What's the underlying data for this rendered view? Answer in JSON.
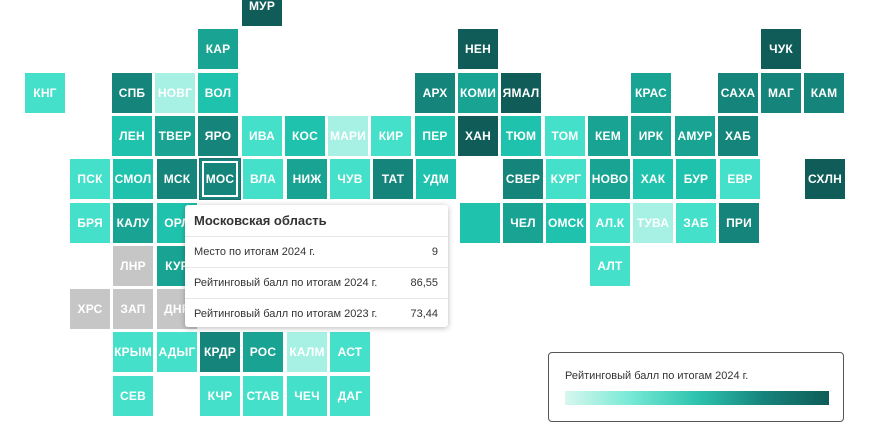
{
  "colors": {
    "c1": "#a6f1e4",
    "c2": "#45e0ca",
    "c3": "#1fc3ad",
    "c4": "#19a393",
    "c5": "#15857b",
    "c6": "#0f5c58",
    "gray": "#c6c6c6"
  },
  "regions": [
    {
      "label": "МУР",
      "col": 5,
      "row": 0,
      "shade": "c6"
    },
    {
      "label": "КАР",
      "col": 4,
      "row": 1,
      "shade": "c4"
    },
    {
      "label": "НЕН",
      "col": 10,
      "row": 1,
      "shade": "c6"
    },
    {
      "label": "ЧУК",
      "col": 17,
      "row": 1,
      "shade": "c6"
    },
    {
      "label": "КНГ",
      "col": 0,
      "row": 2,
      "shade": "c2"
    },
    {
      "label": "СПБ",
      "col": 2,
      "row": 2,
      "shade": "c5"
    },
    {
      "label": "НОВГ",
      "col": 3,
      "row": 2,
      "shade": "c1"
    },
    {
      "label": "ВОЛ",
      "col": 4,
      "row": 2,
      "shade": "c3"
    },
    {
      "label": "АРХ",
      "col": 9,
      "row": 2,
      "shade": "c5"
    },
    {
      "label": "КОМИ",
      "col": 10,
      "row": 2,
      "shade": "c4"
    },
    {
      "label": "ЯМАЛ",
      "col": 11,
      "row": 2,
      "shade": "c6"
    },
    {
      "label": "КРАС",
      "col": 14,
      "row": 2,
      "shade": "c4"
    },
    {
      "label": "САХА",
      "col": 16,
      "row": 2,
      "shade": "c5"
    },
    {
      "label": "МАГ",
      "col": 17,
      "row": 2,
      "shade": "c5"
    },
    {
      "label": "КАМ",
      "col": 18,
      "row": 2,
      "shade": "c5"
    },
    {
      "label": "ЛЕН",
      "col": 2,
      "row": 3,
      "shade": "c3"
    },
    {
      "label": "ТВЕР",
      "col": 3,
      "row": 3,
      "shade": "c4"
    },
    {
      "label": "ЯРО",
      "col": 4,
      "row": 3,
      "shade": "c5"
    },
    {
      "label": "ИВА",
      "col": 5,
      "row": 3,
      "shade": "c2"
    },
    {
      "label": "КОС",
      "col": 6,
      "row": 3,
      "shade": "c3"
    },
    {
      "label": "МАРИ",
      "col": 7,
      "row": 3,
      "shade": "c1"
    },
    {
      "label": "КИР",
      "col": 8,
      "row": 3,
      "shade": "c2"
    },
    {
      "label": "ПЕР",
      "col": 9,
      "row": 3,
      "shade": "c3"
    },
    {
      "label": "ХАН",
      "col": 10,
      "row": 3,
      "shade": "c6"
    },
    {
      "label": "ТЮМ",
      "col": 11,
      "row": 3,
      "shade": "c3"
    },
    {
      "label": "ТОМ",
      "col": 12,
      "row": 3,
      "shade": "c2"
    },
    {
      "label": "КЕМ",
      "col": 13,
      "row": 3,
      "shade": "c4"
    },
    {
      "label": "ИРК",
      "col": 14,
      "row": 3,
      "shade": "c4"
    },
    {
      "label": "АМУР",
      "col": 15,
      "row": 3,
      "shade": "c4"
    },
    {
      "label": "ХАБ",
      "col": 16,
      "row": 3,
      "shade": "c5"
    },
    {
      "label": "ПСК",
      "col": 0,
      "row": 4,
      "shade": "c2"
    },
    {
      "label": "СМОЛ",
      "col": 1,
      "row": 4,
      "shade": "c3"
    },
    {
      "label": "МСК",
      "col": 2,
      "row": 4,
      "shade": "c5"
    },
    {
      "label": "МОС",
      "col": 3,
      "row": 4,
      "shade": "c5",
      "selected": true
    },
    {
      "label": "ВЛА",
      "col": 4,
      "row": 4,
      "shade": "c2"
    },
    {
      "label": "НИЖ",
      "col": 5,
      "row": 4,
      "shade": "c4"
    },
    {
      "label": "ЧУВ",
      "col": 6,
      "row": 4,
      "shade": "c2"
    },
    {
      "label": "ТАТ",
      "col": 7,
      "row": 4,
      "shade": "c5"
    },
    {
      "label": "УДМ",
      "col": 8,
      "row": 4,
      "shade": "c3"
    },
    {
      "label": "СВЕР",
      "col": 9,
      "row": 4,
      "shade": "c5"
    },
    {
      "label": "КУРГ",
      "col": 10,
      "row": 4,
      "shade": "c2"
    },
    {
      "label": "НОВО",
      "col": 11,
      "row": 4,
      "shade": "c4"
    },
    {
      "label": "ХАК",
      "col": 12,
      "row": 4,
      "shade": "c3"
    },
    {
      "label": "БУР",
      "col": 13,
      "row": 4,
      "shade": "c3"
    },
    {
      "label": "ЕВР",
      "col": 14,
      "row": 4,
      "shade": "c2"
    },
    {
      "label": "СХЛН",
      "col": 17,
      "row": 4,
      "shade": "c6"
    },
    {
      "label": "БРЯ",
      "col": 0,
      "row": 5,
      "shade": "c2"
    },
    {
      "label": "КАЛУ",
      "col": 1,
      "row": 5,
      "shade": "c4"
    },
    {
      "label": "ОРЛ",
      "col": 2,
      "row": 5,
      "shade": "c3"
    },
    {
      "label": "",
      "col": 8,
      "row": 5,
      "shade": "c3"
    },
    {
      "label": "ЧЕЛ",
      "col": 9,
      "row": 5,
      "shade": "c4"
    },
    {
      "label": "ОМСК",
      "col": 10,
      "row": 5,
      "shade": "c3"
    },
    {
      "label": "АЛ.К",
      "col": 11,
      "row": 5,
      "shade": "c2"
    },
    {
      "label": "ТУВА",
      "col": 12,
      "row": 5,
      "shade": "c1"
    },
    {
      "label": "ЗАБ",
      "col": 13,
      "row": 5,
      "shade": "c2"
    },
    {
      "label": "ПРИ",
      "col": 15,
      "row": 5,
      "shade": "c5"
    },
    {
      "label": "ЛНР",
      "col": 1,
      "row": 6,
      "shade": "gray"
    },
    {
      "label": "КУР",
      "col": 2,
      "row": 6,
      "shade": "c4"
    },
    {
      "label": "АЛТ",
      "col": 11,
      "row": 6,
      "shade": "c2"
    },
    {
      "label": "ХРС",
      "col": 0,
      "row": 7,
      "shade": "gray"
    },
    {
      "label": "ЗАП",
      "col": 1,
      "row": 7,
      "shade": "gray"
    },
    {
      "label": "ДНР",
      "col": 2,
      "row": 7,
      "shade": "gray"
    },
    {
      "label": "КРЫМ",
      "col": 1,
      "row": 8,
      "shade": "c2"
    },
    {
      "label": "АДЫГ",
      "col": 2,
      "row": 8,
      "shade": "c2"
    },
    {
      "label": "КРДР",
      "col": 3,
      "row": 8,
      "shade": "c5"
    },
    {
      "label": "РОС",
      "col": 4,
      "row": 8,
      "shade": "c4"
    },
    {
      "label": "КАЛМ",
      "col": 5,
      "row": 8,
      "shade": "c1"
    },
    {
      "label": "АСТ",
      "col": 6,
      "row": 8,
      "shade": "c2"
    },
    {
      "label": "СЕВ",
      "col": 1,
      "row": 9,
      "shade": "c2"
    },
    {
      "label": "КЧР",
      "col": 3,
      "row": 9,
      "shade": "c2"
    },
    {
      "label": "СТАВ",
      "col": 4,
      "row": 9,
      "shade": "c2"
    },
    {
      "label": "ЧЕЧ",
      "col": 5,
      "row": 9,
      "shade": "c2"
    },
    {
      "label": "ДАГ",
      "col": 6,
      "row": 9,
      "shade": "c2"
    }
  ],
  "tooltip": {
    "title": "Московская область",
    "rows": [
      {
        "label": "Место по итогам 2024 г.",
        "value": "9"
      },
      {
        "label": "Рейтинговый балл по итогам 2024 г.",
        "value": "86,55"
      },
      {
        "label": "Рейтинговый балл по итогам 2023 г.",
        "value": "73,44"
      }
    ]
  },
  "legend": {
    "title": "Рейтинговый балл по итогам 2024 г."
  }
}
